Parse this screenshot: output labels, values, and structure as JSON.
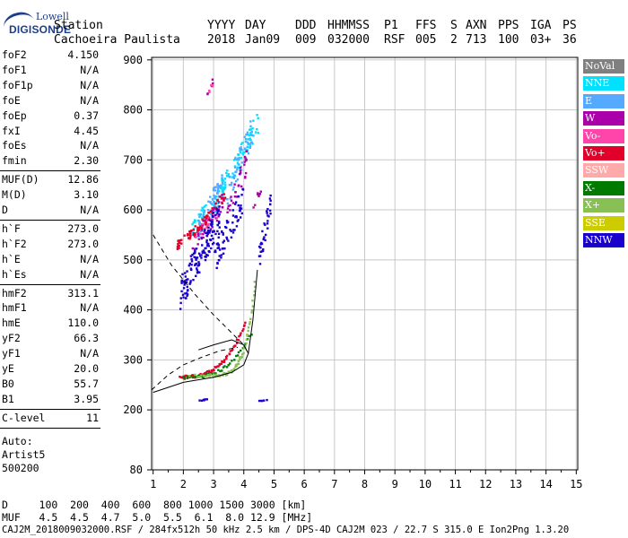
{
  "logo": {
    "line1": "Lowell",
    "line2": "DIGISONDE"
  },
  "header": {
    "row1": {
      "station": "Station",
      "yyyy": "YYYY",
      "day": "DAY",
      "ddd": "DDD",
      "hhmmss": "HHMMSS",
      "p1": "P1",
      "ffs": "FFS",
      "s": "S",
      "axn": "AXN",
      "pps": "PPS",
      "iga": "IGA",
      "ps": "PS"
    },
    "row2": {
      "station": "Cachoeira Paulista",
      "yyyy": "2018",
      "day": "Jan09",
      "ddd": "009",
      "hhmmss": "032000",
      "p1": "RSF",
      "ffs": "005",
      "s": "2",
      "axn": "713",
      "pps": "100",
      "iga": "03+",
      "ps": "36"
    }
  },
  "params": [
    {
      "label": "foF2",
      "value": "4.150"
    },
    {
      "label": "foF1",
      "value": "N/A"
    },
    {
      "label": "foF1p",
      "value": "N/A"
    },
    {
      "label": "foE",
      "value": "N/A"
    },
    {
      "label": "foEp",
      "value": "0.37"
    },
    {
      "label": "fxI",
      "value": "4.45"
    },
    {
      "label": "foEs",
      "value": "N/A"
    },
    {
      "label": "fmin",
      "value": "2.30"
    },
    {
      "label": "MUF(D)",
      "value": "12.86"
    },
    {
      "label": "M(D)",
      "value": "3.10"
    },
    {
      "label": "D",
      "value": "N/A"
    },
    {
      "label": "h`F",
      "value": "273.0"
    },
    {
      "label": "h`F2",
      "value": "273.0"
    },
    {
      "label": "h`E",
      "value": "N/A"
    },
    {
      "label": "h`Es",
      "value": "N/A"
    },
    {
      "label": "hmF2",
      "value": "313.1"
    },
    {
      "label": "hmF1",
      "value": "N/A"
    },
    {
      "label": "hmE",
      "value": "110.0"
    },
    {
      "label": "yF2",
      "value": "66.3"
    },
    {
      "label": "yF1",
      "value": "N/A"
    },
    {
      "label": "yE",
      "value": "20.0"
    },
    {
      "label": "B0",
      "value": "55.7"
    },
    {
      "label": "B1",
      "value": "3.95"
    },
    {
      "label": "C-level",
      "value": "11"
    }
  ],
  "artist": {
    "line1": "Auto:",
    "line2": "Artist5",
    "line3": "500200"
  },
  "legend": [
    {
      "label": "NoVal",
      "bg": "#808080",
      "fg": "#ffffff"
    },
    {
      "label": "NNE",
      "bg": "#00e0ff",
      "fg": "#ffffff"
    },
    {
      "label": "E",
      "bg": "#55aaff",
      "fg": "#ffffff"
    },
    {
      "label": "W",
      "bg": "#aa00aa",
      "fg": "#ffffff"
    },
    {
      "label": "Vo-",
      "bg": "#ff44aa",
      "fg": "#ffffff"
    },
    {
      "label": "Vo+",
      "bg": "#e0002a",
      "fg": "#ffffff"
    },
    {
      "label": "SSW",
      "bg": "#ffaaaa",
      "fg": "#ffffff"
    },
    {
      "label": "X-",
      "bg": "#007a00",
      "fg": "#ffffff"
    },
    {
      "label": "X+",
      "bg": "#88c055",
      "fg": "#ffffff"
    },
    {
      "label": "SSE",
      "bg": "#cccc00",
      "fg": "#ffffff"
    },
    {
      "label": "NNW",
      "bg": "#1a00cc",
      "fg": "#ffffff"
    }
  ],
  "muf_table": {
    "row1": "D     100  200  400  600  800 1000 1500 3000 [km]",
    "row2": "MUF   4.5  4.5  4.7  5.0  5.5  6.1  8.0 12.9 [MHz]"
  },
  "footer": "CAJ2M_2018009032000.RSF / 284fx512h 50 kHz 2.5 km / DPS-4D CAJ2M 023 / 22.7 S 315.0 E Ion2Png 1.3.20",
  "chart_data": {
    "type": "scatter",
    "x_ticks": [
      1,
      2,
      3,
      4,
      5,
      6,
      7,
      8,
      9,
      10,
      11,
      12,
      13,
      14,
      15
    ],
    "y_ticks": [
      80,
      200,
      300,
      400,
      500,
      600,
      700,
      800,
      900
    ],
    "xlim": [
      0.95,
      15.05
    ],
    "ylim": [
      80,
      905
    ],
    "grid": true,
    "series": [
      {
        "name": "NNE",
        "color": "#00e0ff",
        "clusters": [
          {
            "x": [
              2.9,
              3.5
            ],
            "y": [
              570,
              690
            ],
            "n": 55
          },
          {
            "x": [
              3.6,
              4.5
            ],
            "y": [
              650,
              800
            ],
            "n": 55
          },
          {
            "x": [
              2.2,
              2.8
            ],
            "y": [
              540,
              620
            ],
            "n": 25
          }
        ]
      },
      {
        "name": "E",
        "color": "#55aaff",
        "clusters": [
          {
            "x": [
              2.5,
              3.3
            ],
            "y": [
              540,
              680
            ],
            "n": 60
          },
          {
            "x": [
              3.4,
              4.3
            ],
            "y": [
              600,
              790
            ],
            "n": 55
          }
        ]
      },
      {
        "name": "W",
        "color": "#aa00aa",
        "clusters": [
          {
            "x": [
              2.3,
              3.4
            ],
            "y": [
              510,
              640
            ],
            "n": 45
          },
          {
            "x": [
              3.4,
              4.1
            ],
            "y": [
              560,
              720
            ],
            "n": 30
          },
          {
            "x": [
              2.7,
              3.0
            ],
            "y": [
              810,
              870
            ],
            "n": 6
          },
          {
            "x": [
              4.3,
              4.6
            ],
            "y": [
              600,
              650
            ],
            "n": 8
          }
        ]
      },
      {
        "name": "Vo-",
        "color": "#ff44aa",
        "clusters": [
          {
            "x": [
              2.4,
              3.2
            ],
            "y": [
              540,
              610
            ],
            "n": 25
          },
          {
            "x": [
              2.8,
              3.0
            ],
            "y": [
              825,
              860
            ],
            "n": 4
          }
        ]
      },
      {
        "name": "Vo+",
        "color": "#e0002a",
        "clusters": [
          {
            "x": [
              1.8,
              2.6
            ],
            "y": [
              520,
              580
            ],
            "n": 40
          },
          {
            "x": [
              2.6,
              3.4
            ],
            "y": [
              560,
              640
            ],
            "n": 30
          },
          {
            "x": [
              1.9,
              4.1
            ],
            "y": [
              266,
              380
            ],
            "n": 70,
            "trace": true
          }
        ]
      },
      {
        "name": "X-",
        "color": "#007a00",
        "clusters": [
          {
            "x": [
              2.0,
              4.3
            ],
            "y": [
              265,
              360
            ],
            "n": 40,
            "trace": true
          }
        ]
      },
      {
        "name": "X+",
        "color": "#88c055",
        "clusters": [
          {
            "x": [
              2.2,
              4.4
            ],
            "y": [
              268,
              470
            ],
            "n": 70,
            "trace": true,
            "steep": true
          }
        ]
      },
      {
        "name": "NNW",
        "color": "#1a00cc",
        "clusters": [
          {
            "x": [
              1.9,
              3.2
            ],
            "y": [
              400,
              620
            ],
            "n": 140
          },
          {
            "x": [
              3.0,
              4.0
            ],
            "y": [
              470,
              650
            ],
            "n": 70
          },
          {
            "x": [
              4.5,
              4.9
            ],
            "y": [
              480,
              640
            ],
            "n": 35
          },
          {
            "x": [
              2.5,
              2.8
            ],
            "y": [
              217,
              222
            ],
            "n": 6
          },
          {
            "x": [
              4.5,
              4.8
            ],
            "y": [
              217,
              220
            ],
            "n": 5
          }
        ]
      }
    ],
    "profile_curve": [
      [
        1.0,
        235
      ],
      [
        2.0,
        255
      ],
      [
        3.0,
        265
      ],
      [
        3.6,
        275
      ],
      [
        4.0,
        290
      ],
      [
        4.15,
        313
      ],
      [
        4.0,
        330
      ],
      [
        3.6,
        340
      ],
      [
        3.0,
        330
      ],
      [
        2.5,
        320
      ]
    ],
    "profile_upper": [
      [
        4.15,
        313
      ],
      [
        4.3,
        380
      ],
      [
        4.45,
        480
      ]
    ],
    "dashed_curve": [
      [
        1.0,
        550
      ],
      [
        1.6,
        490
      ],
      [
        2.4,
        430
      ],
      [
        3.0,
        390
      ],
      [
        3.5,
        360
      ],
      [
        4.0,
        330
      ],
      [
        4.1,
        318
      ]
    ],
    "dashed_left": [
      [
        0.95,
        240
      ],
      [
        1.5,
        270
      ],
      [
        2.0,
        290
      ],
      [
        2.6,
        305
      ],
      [
        3.2,
        318
      ],
      [
        3.8,
        325
      ]
    ]
  }
}
